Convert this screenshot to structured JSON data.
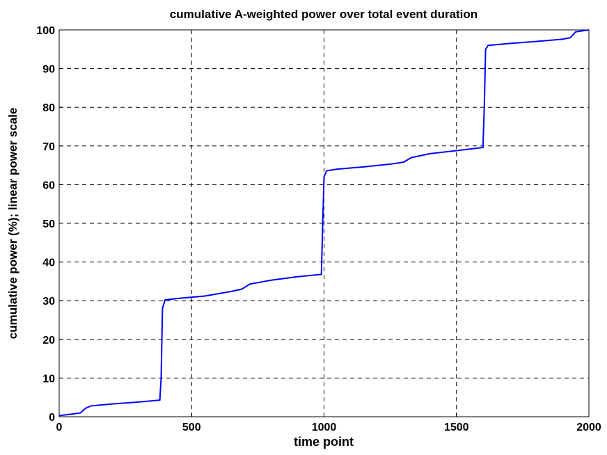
{
  "chart_data": {
    "type": "line",
    "title": "cumulative A-weighted power over total event duration",
    "xlabel": "time point",
    "ylabel": "cumulative power (%); linear power scale",
    "x": [
      0,
      50,
      80,
      100,
      120,
      200,
      300,
      380,
      385,
      390,
      400,
      450,
      550,
      650,
      690,
      720,
      800,
      900,
      990,
      995,
      1000,
      1010,
      1050,
      1150,
      1250,
      1300,
      1330,
      1400,
      1500,
      1600,
      1605,
      1610,
      1620,
      1700,
      1800,
      1900,
      1930,
      1950,
      2000
    ],
    "values": [
      0.3,
      0.7,
      1.0,
      2.2,
      2.8,
      3.3,
      3.8,
      4.3,
      10,
      28,
      30.2,
      30.6,
      31.2,
      32.4,
      33,
      34.3,
      35.3,
      36.2,
      36.8,
      50,
      62,
      63.6,
      64,
      64.6,
      65.3,
      65.8,
      67,
      68,
      68.8,
      69.6,
      80,
      95,
      96,
      96.5,
      97,
      97.6,
      98,
      99.5,
      100
    ],
    "color": "#0000ff",
    "xlim": [
      0,
      2000
    ],
    "xticks": [
      0,
      500,
      1000,
      1500,
      2000
    ],
    "ylim": [
      0,
      100
    ],
    "yticks": [
      0,
      10,
      20,
      30,
      40,
      50,
      60,
      70,
      80,
      90,
      100
    ],
    "grid": true
  }
}
